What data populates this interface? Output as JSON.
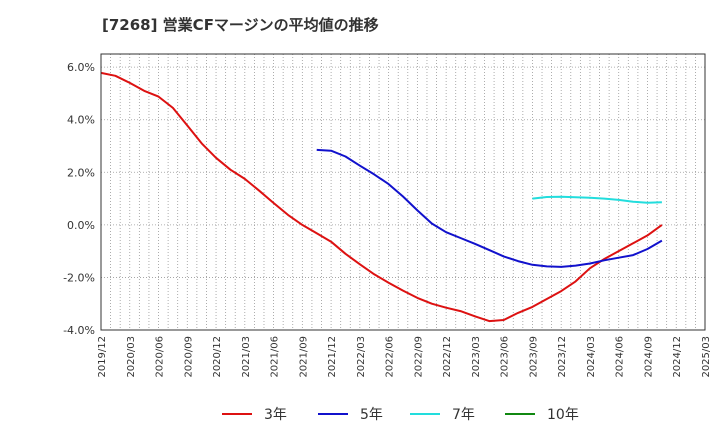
{
  "chart_data": {
    "type": "line",
    "title": "[7268]  営業CFマージンの平均値の推移",
    "xlabel": "",
    "ylabel": "",
    "ylim": [
      -4.0,
      6.5
    ],
    "y_ticks": [
      6.0,
      4.0,
      2.0,
      0.0,
      -2.0,
      -4.0
    ],
    "y_tick_labels": [
      "6.0%",
      "4.0%",
      "2.0%",
      "0.0%",
      "-2.0%",
      "-4.0%"
    ],
    "x_tick_labels": [
      "2019/12",
      "2020/03",
      "2020/06",
      "2020/09",
      "2020/12",
      "2021/03",
      "2021/06",
      "2021/09",
      "2021/12",
      "2022/03",
      "2022/06",
      "2022/09",
      "2022/12",
      "2023/03",
      "2023/06",
      "2023/09",
      "2023/12",
      "2024/03",
      "2024/06",
      "2024/09",
      "2024/12",
      "2025/03"
    ],
    "grid": true,
    "legend_position": "bottom",
    "series": [
      {
        "name": "3年",
        "color": "#dd1111",
        "points": [
          [
            0,
            5.78
          ],
          [
            0.5,
            5.67
          ],
          [
            1,
            5.4
          ],
          [
            1.5,
            5.1
          ],
          [
            2,
            4.88
          ],
          [
            2.5,
            4.45
          ],
          [
            3,
            3.78
          ],
          [
            3.5,
            3.1
          ],
          [
            4,
            2.55
          ],
          [
            4.5,
            2.1
          ],
          [
            5,
            1.75
          ],
          [
            5.5,
            1.3
          ],
          [
            6,
            0.83
          ],
          [
            6.5,
            0.38
          ],
          [
            7,
            0.0
          ],
          [
            7.5,
            -0.32
          ],
          [
            8,
            -0.64
          ],
          [
            8.5,
            -1.1
          ],
          [
            9,
            -1.5
          ],
          [
            9.5,
            -1.88
          ],
          [
            10,
            -2.2
          ],
          [
            10.5,
            -2.5
          ],
          [
            11,
            -2.78
          ],
          [
            11.5,
            -3.0
          ],
          [
            12,
            -3.15
          ],
          [
            12.5,
            -3.28
          ],
          [
            13,
            -3.48
          ],
          [
            13.5,
            -3.66
          ],
          [
            14,
            -3.62
          ],
          [
            14.5,
            -3.35
          ],
          [
            15,
            -3.12
          ],
          [
            15.5,
            -2.82
          ],
          [
            16,
            -2.52
          ],
          [
            16.5,
            -2.15
          ],
          [
            17,
            -1.65
          ],
          [
            17.5,
            -1.3
          ],
          [
            18,
            -1.0
          ],
          [
            18.5,
            -0.7
          ],
          [
            19,
            -0.4
          ],
          [
            19.5,
            0.0
          ]
        ]
      },
      {
        "name": "5年",
        "color": "#1111cc",
        "points": [
          [
            7.5,
            2.85
          ],
          [
            8,
            2.82
          ],
          [
            8.5,
            2.6
          ],
          [
            9,
            2.25
          ],
          [
            9.5,
            1.92
          ],
          [
            10,
            1.55
          ],
          [
            10.5,
            1.08
          ],
          [
            11,
            0.55
          ],
          [
            11.5,
            0.05
          ],
          [
            12,
            -0.28
          ],
          [
            12.5,
            -0.5
          ],
          [
            13,
            -0.72
          ],
          [
            13.5,
            -0.96
          ],
          [
            14,
            -1.2
          ],
          [
            14.5,
            -1.38
          ],
          [
            15,
            -1.52
          ],
          [
            15.5,
            -1.58
          ],
          [
            16,
            -1.6
          ],
          [
            16.5,
            -1.55
          ],
          [
            17,
            -1.47
          ],
          [
            17.5,
            -1.35
          ],
          [
            18,
            -1.25
          ],
          [
            18.5,
            -1.15
          ],
          [
            19,
            -0.92
          ],
          [
            19.5,
            -0.6
          ]
        ]
      },
      {
        "name": "7年",
        "color": "#22dddd",
        "points": [
          [
            15,
            1.0
          ],
          [
            15.5,
            1.06
          ],
          [
            16,
            1.07
          ],
          [
            16.5,
            1.05
          ],
          [
            17,
            1.03
          ],
          [
            17.5,
            1.0
          ],
          [
            18,
            0.95
          ],
          [
            18.5,
            0.88
          ],
          [
            19,
            0.84
          ],
          [
            19.5,
            0.86
          ]
        ]
      },
      {
        "name": "10年",
        "color": "#118811",
        "points": []
      }
    ]
  }
}
